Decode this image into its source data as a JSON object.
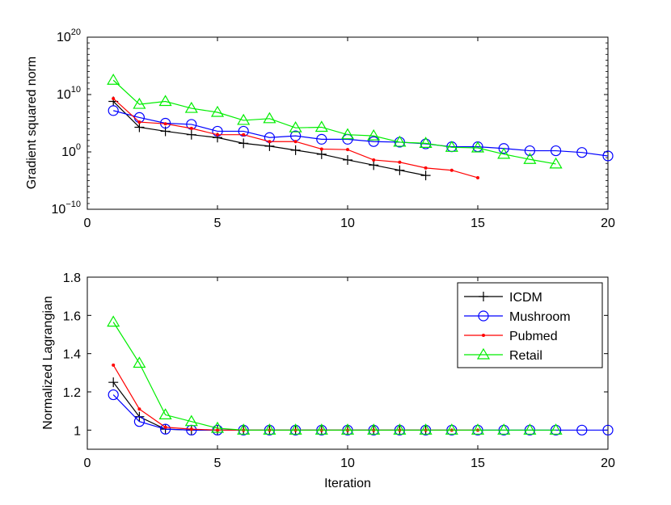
{
  "chart_data": [
    {
      "type": "line",
      "title": "",
      "xlabel": "",
      "ylabel": "Gradient squared norm",
      "yscale": "log",
      "xlim": [
        0,
        20
      ],
      "ylim_exp": [
        -10,
        20
      ],
      "x_ticks": [
        0,
        5,
        10,
        15,
        20
      ],
      "y_ticks": [
        {
          "exp": -10,
          "base": "10",
          "sup": "−10"
        },
        {
          "exp": 0,
          "base": "10",
          "sup": "0"
        },
        {
          "exp": 10,
          "base": "10",
          "sup": "10"
        },
        {
          "exp": 20,
          "base": "10",
          "sup": "20"
        }
      ],
      "series": [
        {
          "name": "ICDM",
          "color": "#000000",
          "marker": "plus",
          "x": [
            1,
            2,
            3,
            4,
            5,
            6,
            7,
            8,
            9,
            10,
            11,
            12,
            13
          ],
          "y_exp": [
            8.8,
            4.3,
            3.6,
            3.0,
            2.5,
            1.5,
            1.0,
            0.3,
            -0.4,
            -1.4,
            -2.3,
            -3.2,
            -4.1
          ]
        },
        {
          "name": "Mushroom",
          "color": "#0000ff",
          "marker": "circle",
          "x": [
            1,
            2,
            3,
            4,
            5,
            6,
            7,
            8,
            9,
            10,
            11,
            12,
            13,
            14,
            15,
            16,
            17,
            18,
            19,
            20
          ],
          "y_exp": [
            7.2,
            6.0,
            5.0,
            4.8,
            3.6,
            3.6,
            2.5,
            2.8,
            2.2,
            2.2,
            1.8,
            1.7,
            1.4,
            0.9,
            0.9,
            0.6,
            0.2,
            0.2,
            -0.1,
            -0.7
          ]
        },
        {
          "name": "Pubmed",
          "color": "#ff0000",
          "marker": "dot",
          "x": [
            1,
            2,
            3,
            4,
            5,
            6,
            7,
            8,
            9,
            10,
            11,
            12,
            13,
            14,
            15
          ],
          "y_exp": [
            9.3,
            5.2,
            4.9,
            4.1,
            3.0,
            3.0,
            1.8,
            1.8,
            0.5,
            0.4,
            -1.4,
            -1.8,
            -2.8,
            -3.2,
            -4.5
          ]
        },
        {
          "name": "Retail",
          "color": "#00ee00",
          "marker": "triangle",
          "x": [
            1,
            2,
            3,
            4,
            5,
            6,
            7,
            8,
            9,
            10,
            11,
            12,
            13,
            14,
            15,
            16,
            17,
            18
          ],
          "y_exp": [
            12.5,
            8.3,
            8.8,
            7.6,
            6.9,
            5.5,
            5.8,
            4.2,
            4.3,
            3.0,
            2.8,
            1.7,
            1.5,
            0.8,
            0.7,
            -0.4,
            -1.3,
            -2.1
          ]
        }
      ]
    },
    {
      "type": "line",
      "title": "",
      "xlabel": "Iteration",
      "ylabel": "Normalized Lagrangian",
      "xlim": [
        0,
        20
      ],
      "ylim": [
        0.9,
        1.8
      ],
      "x_ticks": [
        0,
        5,
        10,
        15,
        20
      ],
      "y_ticks": [
        1,
        1.2,
        1.4,
        1.6,
        1.8
      ],
      "y_tick_labels": [
        "1",
        "1.2",
        "1.4",
        "1.6",
        "1.8"
      ],
      "legend": {
        "placement": "top-right"
      },
      "series": [
        {
          "name": "ICDM",
          "color": "#000000",
          "marker": "plus",
          "x": [
            1,
            2,
            3,
            4,
            5,
            6,
            7,
            8,
            9,
            10,
            11,
            12,
            13
          ],
          "y": [
            1.25,
            1.07,
            1.005,
            1.0,
            1.0,
            1.0,
            1.0,
            1.0,
            1.0,
            1.0,
            1.0,
            1.0,
            1.0
          ]
        },
        {
          "name": "Mushroom",
          "color": "#0000ff",
          "marker": "circle",
          "x": [
            1,
            2,
            3,
            4,
            5,
            6,
            7,
            8,
            9,
            10,
            11,
            12,
            13,
            14,
            15,
            16,
            17,
            18,
            19,
            20
          ],
          "y": [
            1.185,
            1.045,
            1.005,
            1.0,
            1.0,
            1.0,
            1.0,
            1.0,
            1.0,
            1.0,
            1.0,
            1.0,
            1.0,
            1.0,
            1.0,
            1.0,
            1.0,
            1.0,
            1.0,
            1.0
          ]
        },
        {
          "name": "Pubmed",
          "color": "#ff0000",
          "marker": "dot",
          "x": [
            1,
            2,
            3,
            4,
            5,
            6,
            7,
            8,
            9,
            10,
            11,
            12,
            13,
            14,
            15
          ],
          "y": [
            1.34,
            1.11,
            1.015,
            1.005,
            1.0,
            1.0,
            1.0,
            1.0,
            1.0,
            1.0,
            1.0,
            1.0,
            1.0,
            1.0,
            1.0
          ]
        },
        {
          "name": "Retail",
          "color": "#00ee00",
          "marker": "triangle",
          "x": [
            1,
            2,
            3,
            4,
            5,
            6,
            7,
            8,
            9,
            10,
            11,
            12,
            13,
            14,
            15,
            16,
            17,
            18
          ],
          "y": [
            1.565,
            1.35,
            1.08,
            1.045,
            1.01,
            1.0,
            1.0,
            1.0,
            1.0,
            1.0,
            1.0,
            1.0,
            1.0,
            1.0,
            1.0,
            1.0,
            1.0,
            1.0
          ]
        }
      ]
    }
  ]
}
